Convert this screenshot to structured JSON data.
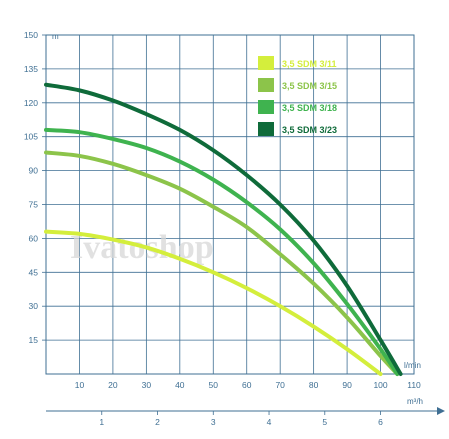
{
  "chart_data": {
    "type": "line",
    "watermark": "Ivatoshop",
    "y_axis": {
      "unit": "m",
      "ylim": [
        0,
        150
      ],
      "ticks": [
        15,
        30,
        45,
        60,
        75,
        90,
        105,
        120,
        135,
        150
      ]
    },
    "x_axis_flow_lmin": {
      "unit": "l/min",
      "xlim": [
        0,
        110
      ],
      "ticks": [
        10,
        20,
        30,
        40,
        50,
        60,
        70,
        80,
        90,
        100,
        110
      ]
    },
    "x_axis_flow_m3h": {
      "unit": "m³/h",
      "xlim": [
        0,
        6.6
      ],
      "ticks": [
        1,
        2,
        3,
        4,
        5,
        6
      ]
    },
    "grid": true,
    "legend_position": "top-right",
    "series": [
      {
        "name": "3,5 SDM 3/11",
        "color": "#d4ee3c",
        "x": [
          0,
          10,
          20,
          30,
          40,
          50,
          60,
          70,
          80,
          90,
          100
        ],
        "y": [
          63,
          62,
          59.5,
          56,
          51,
          45,
          38,
          30,
          21,
          11,
          0
        ]
      },
      {
        "name": "3,5 SDM 3/15",
        "color": "#8cc44a",
        "x": [
          0,
          10,
          20,
          30,
          40,
          50,
          60,
          70,
          80,
          90,
          100,
          105
        ],
        "y": [
          98,
          96.5,
          93,
          88,
          82,
          74,
          65,
          53,
          40,
          25,
          8,
          0
        ]
      },
      {
        "name": "3,5 SDM 3/18",
        "color": "#3fb34f",
        "x": [
          0,
          10,
          20,
          30,
          40,
          50,
          60,
          70,
          80,
          90,
          100,
          105
        ],
        "y": [
          108,
          107,
          104,
          100,
          94,
          86,
          76,
          64,
          49,
          31,
          11,
          0
        ]
      },
      {
        "name": "3,5 SDM 3/23",
        "color": "#0f6b3a",
        "x": [
          0,
          10,
          20,
          30,
          40,
          50,
          60,
          70,
          80,
          90,
          100,
          106
        ],
        "y": [
          128,
          125.5,
          121,
          115,
          108,
          99,
          88,
          75,
          59,
          39,
          15,
          0
        ]
      }
    ]
  }
}
